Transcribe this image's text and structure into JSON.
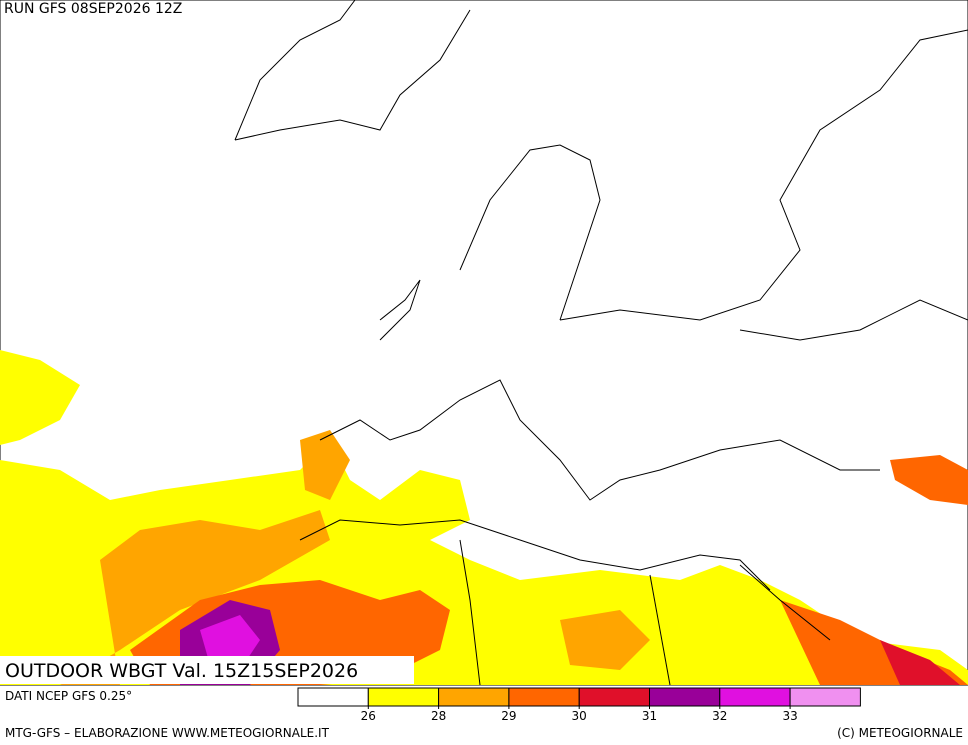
{
  "header": {
    "run": "RUN GFS 08SEP2026 12Z"
  },
  "map": {
    "title": "OUTDOOR WBGT Val. 15Z15SEP2026"
  },
  "legend": {
    "source": "DATI NCEP GFS 0.25°",
    "colors": [
      "#ffffff",
      "#ffff00",
      "#ffa500",
      "#ff6600",
      "#e0102a",
      "#990099",
      "#e010e0",
      "#f090f0"
    ],
    "ticks": [
      26,
      28,
      29,
      30,
      31,
      32,
      33
    ]
  },
  "footer": {
    "left": "MTG-GFS – ELABORAZIONE WWW.METEOGIORNALE.IT",
    "right": "(C) METEOGIORNALE"
  }
}
